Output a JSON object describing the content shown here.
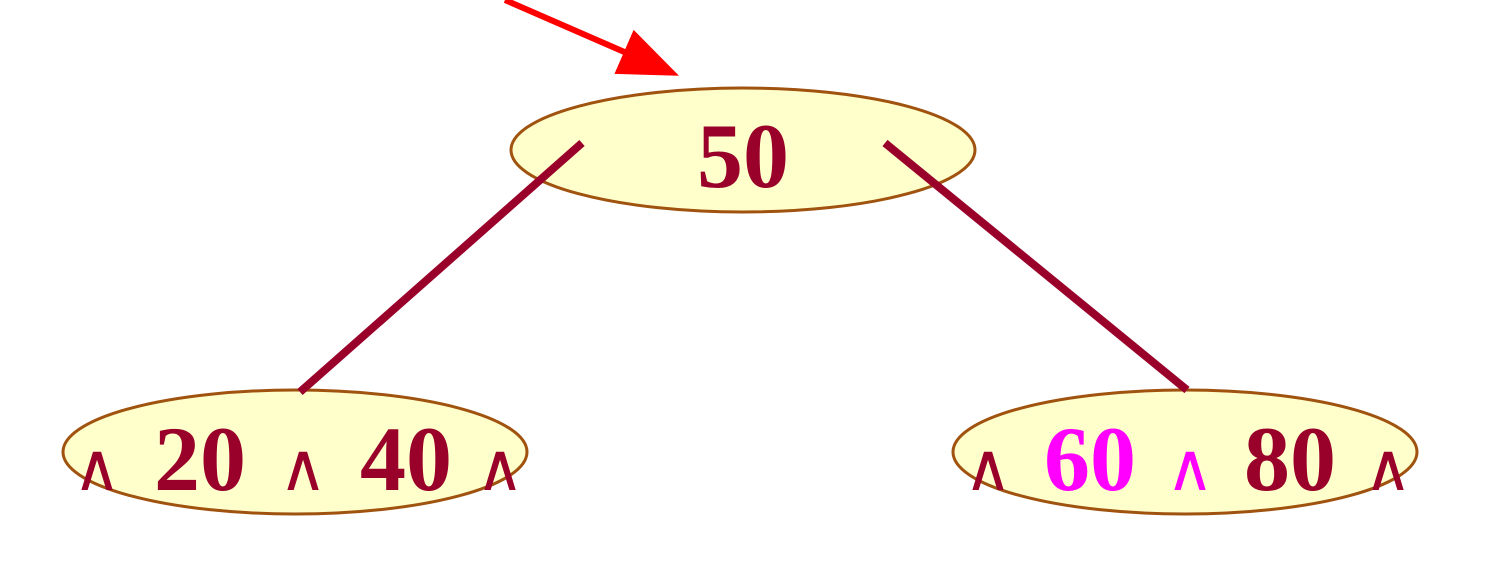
{
  "colors": {
    "node_fill": "#FFFFCC",
    "node_stroke": "#A0520F",
    "edge": "#99002A",
    "text": "#99002A",
    "highlight": "#FF00FF",
    "pointer_arrow": "#FF0000"
  },
  "tree": {
    "root": {
      "key": "50"
    },
    "left": {
      "null_left": "∧",
      "key1": "20",
      "null_mid": "∧",
      "key2": "40",
      "null_right": "∧"
    },
    "right": {
      "null_left": "∧",
      "key1": "60",
      "null_mid": "∧",
      "key2": "80",
      "null_right": "∧",
      "highlighted": [
        "key1",
        "null_mid"
      ]
    }
  }
}
